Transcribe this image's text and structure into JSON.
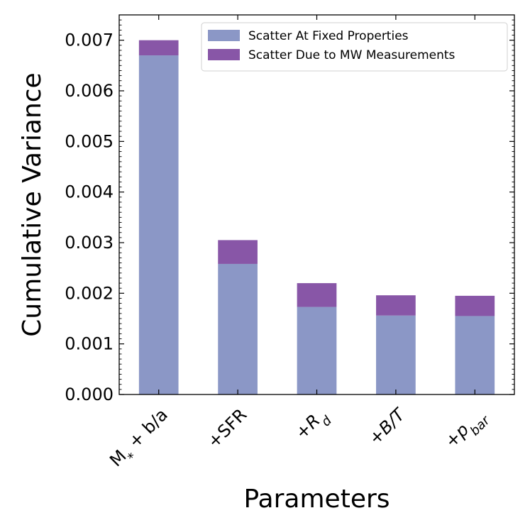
{
  "chart_data": {
    "type": "bar",
    "stacked": true,
    "categories": [
      "M_* + b/a",
      "+SFR",
      "+R_d",
      "+B/T",
      "+p_bar"
    ],
    "category_labels": [
      {
        "parts": [
          {
            "t": "M"
          },
          {
            "t": "*",
            "sub": true
          },
          {
            "t": " + b/a"
          }
        ]
      },
      {
        "parts": [
          {
            "t": "+SFR"
          }
        ]
      },
      {
        "parts": [
          {
            "t": "+"
          },
          {
            "t": "R",
            "italic": true
          },
          {
            "t": "d",
            "sub": true,
            "italic": true
          }
        ]
      },
      {
        "parts": [
          {
            "t": "+"
          },
          {
            "t": "B/T",
            "italic": true
          }
        ]
      },
      {
        "parts": [
          {
            "t": "+"
          },
          {
            "t": "p",
            "italic": true
          },
          {
            "t": "bar",
            "sub": true,
            "italic": true
          }
        ]
      }
    ],
    "series": [
      {
        "name": "Scatter At Fixed Properties",
        "color": "#8b97c6",
        "values": [
          0.0067,
          0.00258,
          0.00173,
          0.00156,
          0.00155
        ]
      },
      {
        "name": "Scatter Due to MW Measurements",
        "color": "#8856a7",
        "values": [
          0.0003,
          0.00047,
          0.00047,
          0.0004,
          0.0004
        ]
      }
    ],
    "xlabel": "Parameters",
    "ylabel": "Cumulative Variance",
    "ylim": [
      0,
      0.0075
    ],
    "yticks": [
      0.0,
      0.001,
      0.002,
      0.003,
      0.004,
      0.005,
      0.006,
      0.007
    ],
    "ytick_labels": [
      "0.000",
      "0.001",
      "0.002",
      "0.003",
      "0.004",
      "0.005",
      "0.006",
      "0.007"
    ],
    "ytick_minor_step": 0.0001,
    "legend_position": "top-right",
    "grid": false
  }
}
